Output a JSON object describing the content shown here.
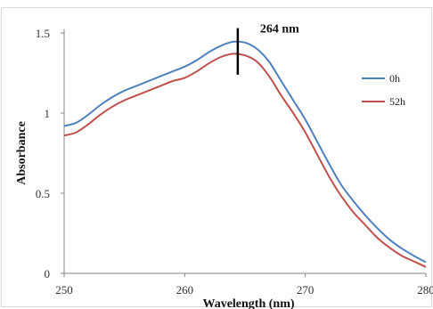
{
  "chart_data": {
    "type": "line",
    "title": "",
    "xlabel": "Wavelength (nm)",
    "ylabel": "Absorbance",
    "xlim": [
      250,
      280
    ],
    "ylim": [
      0,
      1.5
    ],
    "x_ticks": [
      250,
      260,
      270,
      280
    ],
    "y_ticks": [
      0,
      0.5,
      1,
      1.5
    ],
    "grid": false,
    "legend_position": "right",
    "series": [
      {
        "name": "0h",
        "color": "#4f81bd",
        "x": [
          250,
          251,
          252,
          253,
          254,
          255,
          256,
          257,
          258,
          259,
          260,
          261,
          262,
          263,
          264,
          265,
          266,
          267,
          268,
          269,
          270,
          271,
          272,
          273,
          274,
          275,
          276,
          277,
          278,
          279,
          280
        ],
        "y": [
          0.92,
          0.94,
          0.99,
          1.05,
          1.1,
          1.14,
          1.17,
          1.2,
          1.23,
          1.26,
          1.29,
          1.33,
          1.38,
          1.42,
          1.445,
          1.44,
          1.4,
          1.32,
          1.2,
          1.08,
          0.96,
          0.82,
          0.68,
          0.55,
          0.45,
          0.36,
          0.28,
          0.21,
          0.155,
          0.11,
          0.07
        ]
      },
      {
        "name": "52h",
        "color": "#c0504d",
        "x": [
          250,
          251,
          252,
          253,
          254,
          255,
          256,
          257,
          258,
          259,
          260,
          261,
          262,
          263,
          264,
          265,
          266,
          267,
          268,
          269,
          270,
          271,
          272,
          273,
          274,
          275,
          276,
          277,
          278,
          279,
          280
        ],
        "y": [
          0.86,
          0.88,
          0.93,
          0.99,
          1.04,
          1.08,
          1.11,
          1.14,
          1.17,
          1.2,
          1.22,
          1.26,
          1.31,
          1.35,
          1.37,
          1.36,
          1.32,
          1.23,
          1.11,
          1.0,
          0.88,
          0.74,
          0.6,
          0.48,
          0.38,
          0.3,
          0.22,
          0.16,
          0.11,
          0.075,
          0.04
        ]
      }
    ],
    "annotations": [
      {
        "text": "264 nm",
        "x": 264.4,
        "y_range": [
          1.24,
          1.53
        ]
      }
    ]
  }
}
